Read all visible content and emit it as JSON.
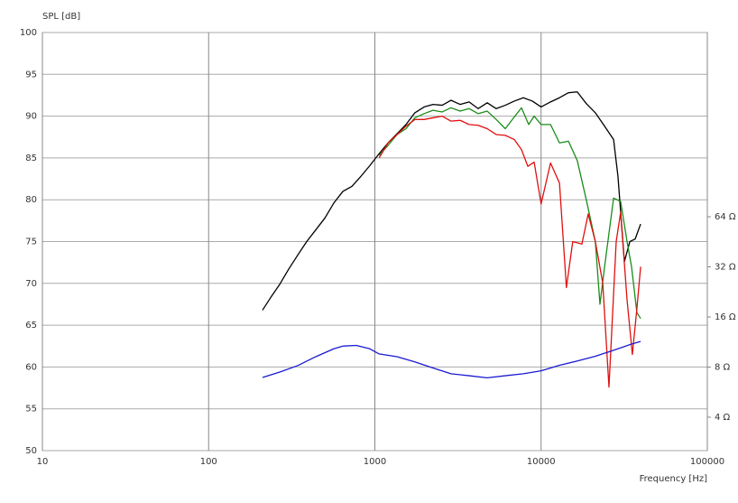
{
  "chart_data": {
    "type": "line",
    "y_label": "SPL [dB]",
    "x_label": "Frequency [Hz]",
    "log_x": true,
    "log_y2": true,
    "grid": true,
    "xlim": [
      10,
      100000
    ],
    "xticks": [
      10,
      100,
      1000,
      10000,
      100000
    ],
    "ylim": [
      50,
      100
    ],
    "yticks": [
      50,
      55,
      60,
      65,
      70,
      75,
      80,
      85,
      90,
      95,
      100
    ],
    "y2lim": [
      2.52,
      818
    ],
    "y2ticks": [
      {
        "value": 4,
        "label": "4 Ω"
      },
      {
        "value": 8,
        "label": "8 Ω"
      },
      {
        "value": 16,
        "label": "16 Ω"
      },
      {
        "value": 32,
        "label": "32 Ω"
      },
      {
        "value": 64,
        "label": "64 Ω"
      }
    ],
    "series": [
      {
        "color": "#000000",
        "x": [
          211,
          236,
          268,
          303,
          344,
          389,
          441,
          500,
          566,
          642,
          727,
          824,
          934,
          1060,
          1200,
          1360,
          1540,
          1740,
          1980,
          2240,
          2540,
          2870,
          3260,
          3690,
          4180,
          4740,
          5370,
          6090,
          6900,
          7820,
          8860,
          10000,
          11400,
          12900,
          14600,
          16500,
          18700,
          21200,
          24100,
          27300,
          29000,
          31700,
          34200,
          36800,
          39700
        ],
        "values": [
          66.8,
          68.3,
          69.9,
          71.7,
          73.4,
          75.0,
          76.4,
          77.8,
          79.6,
          81.0,
          81.6,
          82.8,
          84.1,
          85.5,
          86.8,
          87.9,
          89.0,
          90.4,
          91.1,
          91.4,
          91.3,
          91.9,
          91.4,
          91.7,
          90.9,
          91.6,
          90.9,
          91.3,
          91.8,
          92.2,
          91.8,
          91.1,
          91.7,
          92.2,
          92.8,
          92.9,
          91.5,
          90.4,
          88.8,
          87.2,
          82.8,
          72.6,
          75.0,
          75.3,
          77.1
        ]
      },
      {
        "color": "#1a8c1a",
        "x": [
          1060,
          1200,
          1360,
          1540,
          1740,
          1980,
          2240,
          2540,
          2870,
          3260,
          3690,
          4180,
          4740,
          5370,
          6090,
          6900,
          7620,
          8420,
          9080,
          10000,
          11400,
          12900,
          14600,
          16500,
          18700,
          21200,
          22600,
          24100,
          27300,
          30100,
          32900,
          35000,
          37700,
          39700
        ],
        "values": [
          85.3,
          86.5,
          87.8,
          88.5,
          89.8,
          90.3,
          90.7,
          90.5,
          91.0,
          90.6,
          90.9,
          90.3,
          90.6,
          89.6,
          88.5,
          89.9,
          91.0,
          89.0,
          90.0,
          89.0,
          89.0,
          86.8,
          87.0,
          84.7,
          80.0,
          75.0,
          67.5,
          72.0,
          80.2,
          79.8,
          75.0,
          72.0,
          66.5,
          65.8
        ]
      },
      {
        "color": "#e01010",
        "x": [
          1060,
          1200,
          1360,
          1540,
          1740,
          1980,
          2240,
          2540,
          2870,
          3260,
          3690,
          4180,
          4740,
          5370,
          6090,
          6900,
          7620,
          8320,
          9080,
          10000,
          11400,
          12900,
          14200,
          15500,
          17600,
          19200,
          21200,
          23500,
          25600,
          28300,
          30100,
          32900,
          35400,
          37700,
          39700
        ],
        "values": [
          85.0,
          86.8,
          87.8,
          88.8,
          89.6,
          89.6,
          89.8,
          90.0,
          89.4,
          89.5,
          89.0,
          88.9,
          88.5,
          87.8,
          87.7,
          87.2,
          86.0,
          84.0,
          84.5,
          79.5,
          84.4,
          82.0,
          69.5,
          75.0,
          74.7,
          78.3,
          75.0,
          70.0,
          57.6,
          75.0,
          78.5,
          68.0,
          61.5,
          67.0,
          72.0
        ]
      },
      {
        "color": "#1a1ad0",
        "axis": "y2",
        "x": [
          211,
          268,
          344,
          441,
          566,
          642,
          774,
          934,
          1060,
          1360,
          1740,
          2240,
          2870,
          3690,
          4740,
          6090,
          7820,
          10000,
          12900,
          16500,
          21200,
          27300,
          35000,
          39700
        ],
        "values": [
          6.93,
          7.47,
          8.17,
          9.24,
          10.3,
          10.7,
          10.8,
          10.3,
          9.6,
          9.24,
          8.6,
          7.9,
          7.3,
          7.1,
          6.9,
          7.1,
          7.3,
          7.6,
          8.2,
          8.7,
          9.3,
          10.1,
          11.0,
          11.4
        ]
      }
    ]
  }
}
